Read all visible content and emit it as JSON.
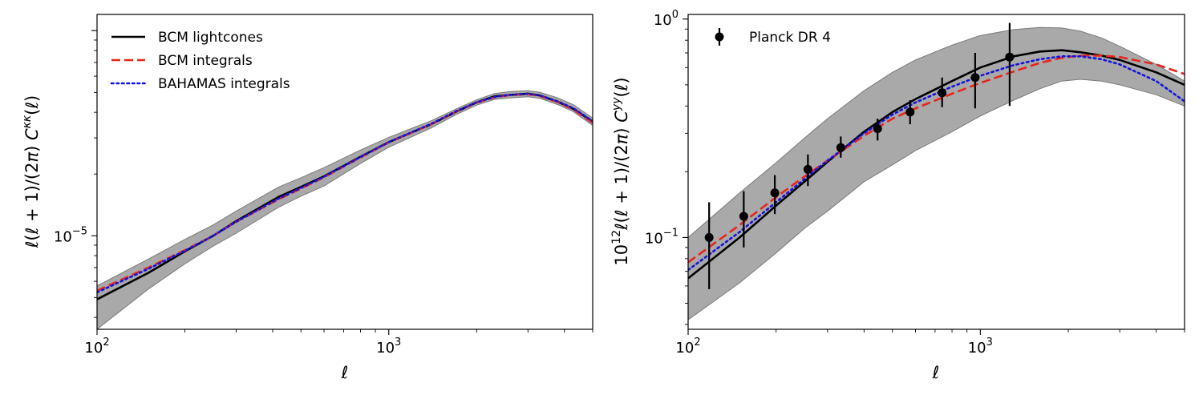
{
  "chart_data": [
    {
      "type": "line",
      "xscale": "log",
      "yscale": "log",
      "xlim": [
        100,
        5000
      ],
      "ylim": [
        3.5e-06,
        0.00012
      ],
      "xlabel": "ℓ",
      "ylabel": "ℓ(ℓ + 1)/(2π) C^{κκ}(ℓ)",
      "xticks": [
        {
          "value": 100,
          "base": "10",
          "exp": "2"
        },
        {
          "value": 1000,
          "base": "10",
          "exp": "3"
        }
      ],
      "yticks": [
        {
          "value": 1e-05,
          "base": "10",
          "exp": "−5"
        }
      ],
      "legend_loc": "upper-left",
      "series": [
        {
          "name": "BCM lightcones",
          "style": "solid",
          "color": "#000000",
          "x": [
            100,
            150,
            200,
            250,
            300,
            420,
            500,
            600,
            800,
            1000,
            1400,
            1700,
            2000,
            2300,
            2600,
            3000,
            3300,
            3800,
            4300,
            5000
          ],
          "y": [
            4.9e-06,
            6.6e-06,
            8.4e-06,
            1e-05,
            1.18e-05,
            1.55e-05,
            1.73e-05,
            1.95e-05,
            2.43e-05,
            2.86e-05,
            3.5e-05,
            4.02e-05,
            4.47e-05,
            4.78e-05,
            4.86e-05,
            4.93e-05,
            4.83e-05,
            4.5e-05,
            4.15e-05,
            3.6e-05
          ]
        },
        {
          "name": "BCM integrals",
          "style": "dashed",
          "color": "#e8251c",
          "x": [
            100,
            150,
            200,
            250,
            300,
            420,
            500,
            600,
            800,
            1000,
            1400,
            1700,
            2000,
            2300,
            2600,
            3000,
            3300,
            3800,
            4300,
            5000
          ],
          "y": [
            5.4e-06,
            7e-06,
            8.5e-06,
            1e-05,
            1.17e-05,
            1.51e-05,
            1.7e-05,
            1.93e-05,
            2.41e-05,
            2.85e-05,
            3.5e-05,
            4.03e-05,
            4.45e-05,
            4.73e-05,
            4.85e-05,
            4.9e-05,
            4.8e-05,
            4.48e-05,
            4.12e-05,
            3.55e-05
          ]
        },
        {
          "name": "BAHAMAS integrals",
          "style": "dotted",
          "color": "#1414e0",
          "x": [
            100,
            150,
            200,
            250,
            300,
            420,
            500,
            600,
            800,
            1000,
            1400,
            1700,
            2000,
            2300,
            2600,
            3000,
            3300,
            3800,
            4300,
            5000
          ],
          "y": [
            5.3e-06,
            6.9e-06,
            8.45e-06,
            1e-05,
            1.17e-05,
            1.52e-05,
            1.71e-05,
            1.94e-05,
            2.42e-05,
            2.86e-05,
            3.52e-05,
            4.05e-05,
            4.47e-05,
            4.75e-05,
            4.86e-05,
            4.92e-05,
            4.83e-05,
            4.52e-05,
            4.18e-05,
            3.62e-05
          ]
        }
      ],
      "band": {
        "name": "scatter band",
        "color": "#a9a9a9",
        "x": [
          100,
          150,
          200,
          250,
          300,
          420,
          500,
          600,
          800,
          1000,
          1400,
          1700,
          2000,
          2300,
          2600,
          3000,
          3300,
          3800,
          4300,
          5000
        ],
        "upper": [
          5.7e-06,
          7.7e-06,
          9.6e-06,
          1.13e-05,
          1.32e-05,
          1.73e-05,
          1.92e-05,
          2.15e-05,
          2.62e-05,
          3.02e-05,
          3.64e-05,
          4.15e-05,
          4.6e-05,
          4.93e-05,
          5.05e-05,
          5.1e-05,
          5e-05,
          4.7e-05,
          4.35e-05,
          3.75e-05
        ],
        "lower": [
          3.5e-06,
          5.5e-06,
          7.3e-06,
          8.9e-06,
          1.03e-05,
          1.38e-05,
          1.56e-05,
          1.75e-05,
          2.25e-05,
          2.7e-05,
          3.36e-05,
          3.9e-05,
          4.33e-05,
          4.62e-05,
          4.7e-05,
          4.76e-05,
          4.67e-05,
          4.36e-05,
          4.02e-05,
          3.45e-05
        ]
      }
    },
    {
      "type": "line",
      "xscale": "log",
      "yscale": "log",
      "xlim": [
        100,
        5000
      ],
      "ylim": [
        0.038,
        1.05
      ],
      "xlabel": "ℓ",
      "ylabel": "10^{12} ℓ(ℓ + 1)/(2π) C^{yy}(ℓ)",
      "xticks": [
        {
          "value": 100,
          "base": "10",
          "exp": "2"
        },
        {
          "value": 1000,
          "base": "10",
          "exp": "3"
        }
      ],
      "yticks": [
        {
          "value": 0.1,
          "base": "10",
          "exp": "−1"
        },
        {
          "value": 1,
          "base": "10",
          "exp": "0"
        }
      ],
      "legend_loc": "upper-left",
      "series": [
        {
          "name": "BCM lightcones",
          "style": "solid",
          "color": "#000000",
          "x": [
            100,
            150,
            200,
            250,
            300,
            400,
            500,
            600,
            800,
            1000,
            1300,
            1600,
            1900,
            2200,
            2600,
            3000,
            4000,
            5000
          ],
          "y": [
            0.065,
            0.1,
            0.14,
            0.18,
            0.222,
            0.305,
            0.375,
            0.43,
            0.52,
            0.6,
            0.675,
            0.71,
            0.72,
            0.705,
            0.68,
            0.65,
            0.57,
            0.5
          ]
        },
        {
          "name": "BCM integrals",
          "style": "dashed",
          "color": "#e8251c",
          "x": [
            100,
            150,
            200,
            250,
            300,
            400,
            500,
            600,
            800,
            1000,
            1300,
            1600,
            1900,
            2200,
            2600,
            3000,
            4000,
            5000
          ],
          "y": [
            0.077,
            0.114,
            0.153,
            0.19,
            0.225,
            0.292,
            0.35,
            0.39,
            0.455,
            0.51,
            0.575,
            0.63,
            0.665,
            0.68,
            0.68,
            0.67,
            0.62,
            0.56
          ]
        },
        {
          "name": "BAHAMAS integrals",
          "style": "dotted",
          "color": "#1414e0",
          "x": [
            100,
            150,
            200,
            250,
            300,
            400,
            500,
            600,
            800,
            1000,
            1300,
            1600,
            1900,
            2200,
            2600,
            3000,
            4000,
            5000
          ],
          "y": [
            0.071,
            0.106,
            0.145,
            0.185,
            0.225,
            0.3,
            0.365,
            0.415,
            0.49,
            0.55,
            0.615,
            0.655,
            0.675,
            0.675,
            0.655,
            0.62,
            0.52,
            0.42
          ]
        },
        {
          "name": "Planck DR 4",
          "style": "errorbar",
          "color": "#000000",
          "x": [
            118,
            155,
            198,
            257,
            333,
            445,
            575,
            740,
            960,
            1260
          ],
          "y": [
            0.1,
            0.125,
            0.16,
            0.205,
            0.258,
            0.315,
            0.375,
            0.46,
            0.54,
            0.67
          ],
          "yerr_low": [
            0.058,
            0.09,
            0.128,
            0.172,
            0.232,
            0.278,
            0.33,
            0.395,
            0.39,
            0.4
          ],
          "yerr_high": [
            0.145,
            0.163,
            0.193,
            0.24,
            0.29,
            0.35,
            0.425,
            0.54,
            0.7,
            0.96
          ]
        }
      ],
      "band": {
        "name": "scatter band",
        "color": "#a9a9a9",
        "x": [
          100,
          150,
          200,
          250,
          300,
          400,
          500,
          600,
          800,
          1000,
          1300,
          1600,
          1900,
          2200,
          2600,
          3000,
          4000,
          5000
        ],
        "upper": [
          0.1,
          0.16,
          0.22,
          0.285,
          0.35,
          0.47,
          0.57,
          0.65,
          0.76,
          0.84,
          0.895,
          0.915,
          0.91,
          0.88,
          0.82,
          0.75,
          0.62,
          0.52
        ],
        "lower": [
          0.042,
          0.062,
          0.085,
          0.11,
          0.132,
          0.18,
          0.215,
          0.25,
          0.305,
          0.36,
          0.425,
          0.48,
          0.52,
          0.53,
          0.52,
          0.5,
          0.45,
          0.4
        ]
      }
    }
  ]
}
